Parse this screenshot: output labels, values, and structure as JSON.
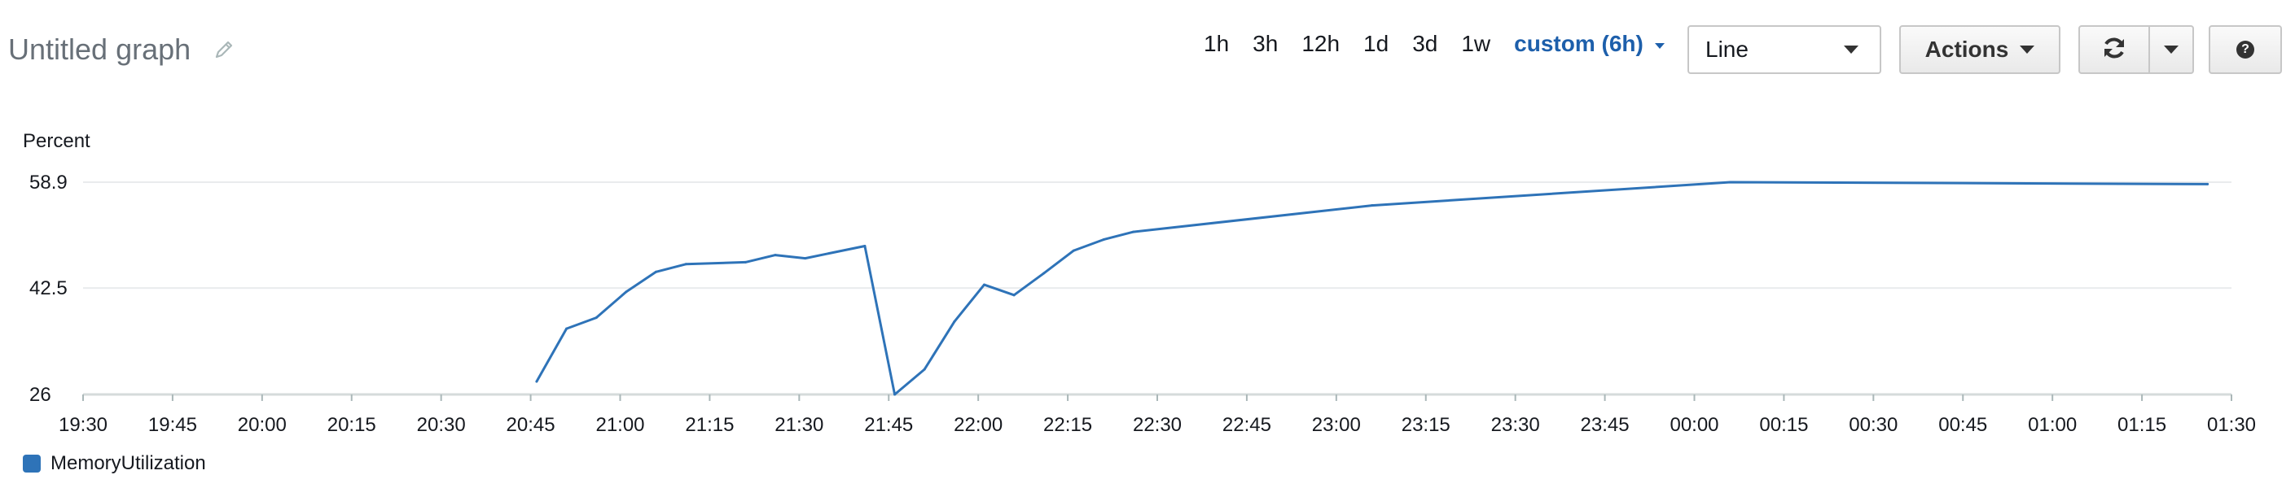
{
  "header": {
    "title": "Untitled graph",
    "edit_icon": "pencil-icon"
  },
  "toolbar": {
    "ranges": [
      "1h",
      "3h",
      "12h",
      "1d",
      "3d",
      "1w"
    ],
    "custom_label": "custom (6h)",
    "graph_type": "Line",
    "actions_label": "Actions",
    "refresh_icon": "refresh-icon",
    "help_icon": "help-icon",
    "help_glyph": "?"
  },
  "colors": {
    "series": "#2e73b8",
    "accent": "#1d5fab",
    "grid": "#e9ebed",
    "axis": "#d5dbdb"
  },
  "chart_data": {
    "type": "line",
    "ylabel": "Percent",
    "yticks": [
      26,
      42.5,
      58.9
    ],
    "ylim": [
      26,
      58.9
    ],
    "xticks": [
      "19:30",
      "19:45",
      "20:00",
      "20:15",
      "20:30",
      "20:45",
      "21:00",
      "21:15",
      "21:30",
      "21:45",
      "22:00",
      "22:15",
      "22:30",
      "22:45",
      "23:00",
      "23:15",
      "23:30",
      "23:45",
      "00:00",
      "00:15",
      "00:30",
      "00:45",
      "01:00",
      "01:15",
      "01:30"
    ],
    "xlim": [
      "19:30",
      "01:30"
    ],
    "legend_position": "bottom-left",
    "grid": true,
    "series": [
      {
        "name": "MemoryUtilization",
        "x": [
          "20:46",
          "20:51",
          "20:56",
          "21:01",
          "21:06",
          "21:11",
          "21:21",
          "21:26",
          "21:31",
          "21:41",
          "21:46",
          "21:51",
          "21:56",
          "22:01",
          "22:06",
          "22:11",
          "22:16",
          "22:21",
          "22:26",
          "23:06",
          "00:06",
          "01:26"
        ],
        "values": [
          28.0,
          36.2,
          37.9,
          41.9,
          45.0,
          46.2,
          46.5,
          47.6,
          47.1,
          49.0,
          26.0,
          29.9,
          37.3,
          43.0,
          41.4,
          44.8,
          48.3,
          50.0,
          51.2,
          55.3,
          58.9,
          58.6
        ]
      }
    ]
  }
}
